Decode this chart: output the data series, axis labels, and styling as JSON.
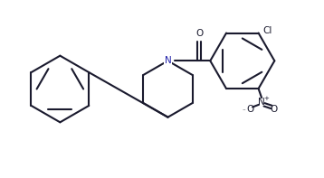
{
  "background": "#ffffff",
  "line_color": "#1a1a2e",
  "line_width": 1.5,
  "font_size_atom": 7.5,
  "atoms": {
    "N": {
      "label": "N",
      "color": "#2222aa"
    },
    "O_carbonyl": {
      "label": "O",
      "color": "#1a1a2e"
    },
    "Cl": {
      "label": "Cl",
      "color": "#1a1a2e"
    },
    "NO2_N": {
      "label": "N",
      "color": "#1a1a2e"
    },
    "NO2_O1": {
      "label": "O",
      "color": "#1a1a2e"
    },
    "NO2_O2": {
      "label": "O",
      "color": "#1a1a2e"
    }
  }
}
